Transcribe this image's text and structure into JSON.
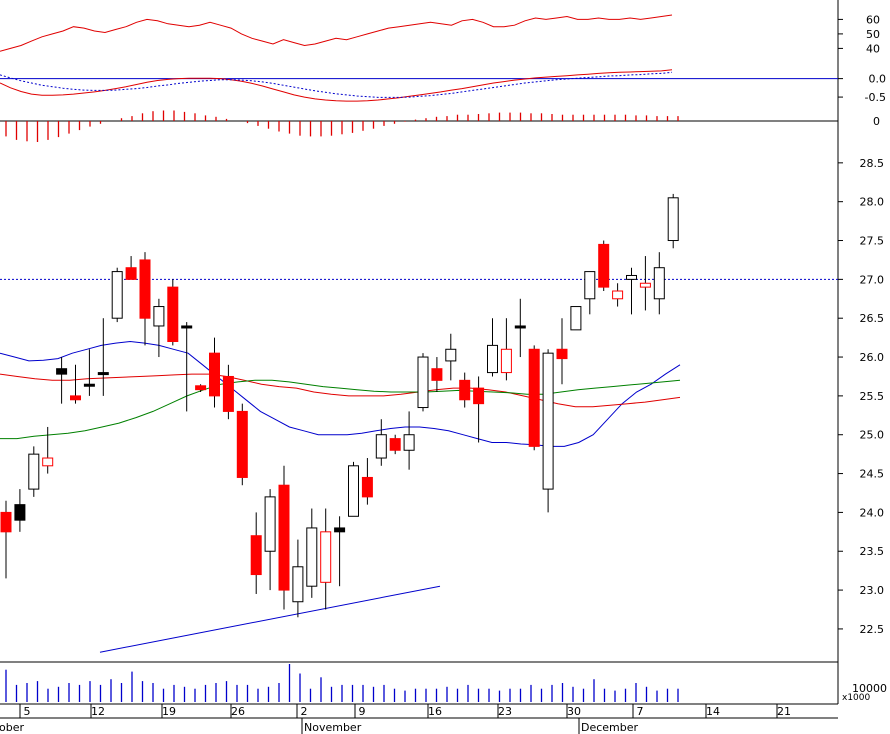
{
  "chart_data": [
    {
      "panel": "rsi",
      "type": "line",
      "ylim": [
        32,
        72
      ],
      "ticks": [
        "60",
        "50",
        "40"
      ],
      "tick_values": [
        60,
        50,
        40
      ],
      "series": [
        {
          "color": "#e00000",
          "values": [
            38,
            40,
            42,
            45,
            48,
            50,
            52,
            55,
            54,
            52,
            51,
            53,
            55,
            58,
            60,
            59,
            57,
            56,
            55,
            56,
            58,
            56,
            54,
            50,
            47,
            45,
            43,
            46,
            44,
            42,
            43,
            45,
            47,
            46,
            48,
            50,
            52,
            54,
            55,
            56,
            57,
            58,
            57,
            56,
            59,
            60,
            58,
            55,
            55,
            56,
            59,
            61,
            60,
            61,
            62,
            60,
            60,
            61,
            60,
            60,
            61,
            60,
            61,
            62,
            63
          ]
        }
      ]
    },
    {
      "panel": "macd",
      "type": "line",
      "ylim": [
        -0.85,
        0.45
      ],
      "ticks": [
        "0.0",
        "-0.5"
      ],
      "tick_values": [
        0.0,
        -0.5
      ],
      "series": [
        {
          "color": "#e00000",
          "values": [
            -0.12,
            -0.25,
            -0.35,
            -0.42,
            -0.45,
            -0.45,
            -0.44,
            -0.42,
            -0.39,
            -0.36,
            -0.32,
            -0.27,
            -0.22,
            -0.16,
            -0.1,
            -0.05,
            -0.02,
            0.0,
            0.01,
            0.01,
            0.01,
            0.0,
            -0.03,
            -0.07,
            -0.13,
            -0.2,
            -0.28,
            -0.36,
            -0.44,
            -0.5,
            -0.55,
            -0.58,
            -0.6,
            -0.61,
            -0.61,
            -0.6,
            -0.58,
            -0.55,
            -0.52,
            -0.48,
            -0.44,
            -0.4,
            -0.36,
            -0.31,
            -0.27,
            -0.22,
            -0.17,
            -0.12,
            -0.08,
            -0.04,
            -0.01,
            0.02,
            0.04,
            0.06,
            0.08,
            0.1,
            0.12,
            0.14,
            0.16,
            0.17,
            0.18,
            0.19,
            0.2,
            0.21,
            0.24
          ]
        },
        {
          "color": "#0000cc",
          "dashed": true,
          "values": [
            0.1,
            0.02,
            -0.06,
            -0.12,
            -0.18,
            -0.22,
            -0.26,
            -0.29,
            -0.31,
            -0.32,
            -0.32,
            -0.31,
            -0.29,
            -0.27,
            -0.24,
            -0.2,
            -0.17,
            -0.13,
            -0.1,
            -0.07,
            -0.05,
            -0.03,
            -0.03,
            -0.04,
            -0.06,
            -0.09,
            -0.13,
            -0.18,
            -0.23,
            -0.28,
            -0.33,
            -0.37,
            -0.41,
            -0.44,
            -0.47,
            -0.49,
            -0.51,
            -0.51,
            -0.51,
            -0.5,
            -0.48,
            -0.46,
            -0.43,
            -0.4,
            -0.36,
            -0.32,
            -0.28,
            -0.24,
            -0.2,
            -0.16,
            -0.12,
            -0.09,
            -0.06,
            -0.03,
            -0.01,
            0.01,
            0.03,
            0.05,
            0.07,
            0.08,
            0.1,
            0.11,
            0.13,
            0.14,
            0.17
          ]
        }
      ]
    },
    {
      "panel": "histogram",
      "type": "bar",
      "ylim": [
        -0.4,
        0.25
      ],
      "ticks": [
        "0"
      ],
      "tick_values": [
        0
      ],
      "values": [
        -0.22,
        -0.27,
        -0.29,
        -0.3,
        -0.27,
        -0.23,
        -0.18,
        -0.13,
        -0.08,
        -0.04,
        0.0,
        0.04,
        0.07,
        0.11,
        0.14,
        0.15,
        0.15,
        0.13,
        0.11,
        0.08,
        0.06,
        0.03,
        0.0,
        -0.03,
        -0.07,
        -0.11,
        -0.15,
        -0.18,
        -0.21,
        -0.22,
        -0.22,
        -0.21,
        -0.19,
        -0.17,
        -0.14,
        -0.11,
        -0.07,
        -0.04,
        -0.01,
        0.02,
        0.04,
        0.06,
        0.07,
        0.09,
        0.09,
        0.1,
        0.11,
        0.12,
        0.12,
        0.12,
        0.11,
        0.11,
        0.1,
        0.09,
        0.09,
        0.09,
        0.09,
        0.09,
        0.09,
        0.09,
        0.08,
        0.08,
        0.07,
        0.07,
        0.07
      ]
    },
    {
      "panel": "price",
      "type": "candlestick",
      "ylim": [
        22.1,
        29.0
      ],
      "ticks": [
        "28.5",
        "28.0",
        "27.5",
        "27.0",
        "26.5",
        "26.0",
        "25.5",
        "25.0",
        "24.5",
        "24.0",
        "23.5",
        "23.0",
        "22.5"
      ],
      "tick_values": [
        28.5,
        28.0,
        27.5,
        27.0,
        26.5,
        26.0,
        25.5,
        25.0,
        24.5,
        24.0,
        23.5,
        23.0,
        22.5
      ],
      "reference_line": 27.0,
      "candles": [
        {
          "o": 24.0,
          "h": 24.15,
          "l": 23.15,
          "c": 23.75,
          "color": "red"
        },
        {
          "o": 23.9,
          "h": 24.3,
          "l": 23.75,
          "c": 24.1,
          "color": "black"
        },
        {
          "o": 24.3,
          "h": 24.85,
          "l": 24.2,
          "c": 24.75,
          "color": "white"
        },
        {
          "o": 24.7,
          "h": 25.1,
          "l": 24.5,
          "c": 24.6,
          "color": "white-red"
        },
        {
          "o": 25.85,
          "h": 26.0,
          "l": 25.4,
          "c": 25.78,
          "color": "black"
        },
        {
          "o": 25.5,
          "h": 25.9,
          "l": 25.4,
          "c": 25.45,
          "color": "red"
        },
        {
          "o": 25.65,
          "h": 26.1,
          "l": 25.5,
          "c": 25.65,
          "color": "black"
        },
        {
          "o": 25.8,
          "h": 26.5,
          "l": 25.5,
          "c": 25.8,
          "color": "black"
        },
        {
          "o": 26.5,
          "h": 27.15,
          "l": 26.45,
          "c": 27.1,
          "color": "white"
        },
        {
          "o": 27.15,
          "h": 27.3,
          "l": 27.0,
          "c": 27.0,
          "color": "red"
        },
        {
          "o": 27.25,
          "h": 27.35,
          "l": 26.15,
          "c": 26.5,
          "color": "red"
        },
        {
          "o": 26.4,
          "h": 26.75,
          "l": 26.0,
          "c": 26.65,
          "color": "white"
        },
        {
          "o": 26.9,
          "h": 27.0,
          "l": 26.15,
          "c": 26.2,
          "color": "red"
        },
        {
          "o": 26.4,
          "h": 26.45,
          "l": 25.3,
          "c": 26.4,
          "color": "black"
        },
        {
          "o": 25.63,
          "h": 25.65,
          "l": 25.55,
          "c": 25.58,
          "color": "red"
        },
        {
          "o": 26.05,
          "h": 26.25,
          "l": 25.35,
          "c": 25.5,
          "color": "red"
        },
        {
          "o": 25.75,
          "h": 25.9,
          "l": 25.2,
          "c": 25.3,
          "color": "red"
        },
        {
          "o": 25.3,
          "h": 25.4,
          "l": 24.35,
          "c": 24.45,
          "color": "red"
        },
        {
          "o": 23.7,
          "h": 24.0,
          "l": 22.95,
          "c": 23.2,
          "color": "red"
        },
        {
          "o": 23.5,
          "h": 24.3,
          "l": 23.0,
          "c": 24.2,
          "color": "white"
        },
        {
          "o": 24.35,
          "h": 24.6,
          "l": 22.75,
          "c": 23.0,
          "color": "red"
        },
        {
          "o": 22.85,
          "h": 23.65,
          "l": 22.65,
          "c": 23.3,
          "color": "white"
        },
        {
          "o": 23.05,
          "h": 24.05,
          "l": 22.9,
          "c": 23.8,
          "color": "white"
        },
        {
          "o": 23.75,
          "h": 24.05,
          "l": 22.75,
          "c": 23.1,
          "color": "white-red"
        },
        {
          "o": 23.8,
          "h": 23.95,
          "l": 23.05,
          "c": 23.75,
          "color": "black"
        },
        {
          "o": 23.95,
          "h": 24.65,
          "l": 23.95,
          "c": 24.6,
          "color": "white"
        },
        {
          "o": 24.45,
          "h": 24.7,
          "l": 24.1,
          "c": 24.2,
          "color": "red"
        },
        {
          "o": 24.7,
          "h": 25.2,
          "l": 24.6,
          "c": 25.0,
          "color": "white"
        },
        {
          "o": 24.95,
          "h": 25.0,
          "l": 24.75,
          "c": 24.8,
          "color": "red"
        },
        {
          "o": 24.8,
          "h": 25.3,
          "l": 24.55,
          "c": 25.0,
          "color": "white"
        },
        {
          "o": 25.35,
          "h": 26.05,
          "l": 25.3,
          "c": 26.0,
          "color": "white"
        },
        {
          "o": 25.85,
          "h": 26.0,
          "l": 25.55,
          "c": 25.7,
          "color": "red"
        },
        {
          "o": 25.95,
          "h": 26.3,
          "l": 25.7,
          "c": 26.1,
          "color": "white"
        },
        {
          "o": 25.7,
          "h": 25.8,
          "l": 25.35,
          "c": 25.45,
          "color": "red"
        },
        {
          "o": 25.6,
          "h": 25.75,
          "l": 24.9,
          "c": 25.4,
          "color": "red"
        },
        {
          "o": 25.8,
          "h": 26.5,
          "l": 25.75,
          "c": 26.15,
          "color": "white"
        },
        {
          "o": 25.8,
          "h": 26.5,
          "l": 25.7,
          "c": 26.1,
          "color": "white-red"
        },
        {
          "o": 26.4,
          "h": 26.75,
          "l": 26.0,
          "c": 26.4,
          "color": "black"
        },
        {
          "o": 26.1,
          "h": 26.15,
          "l": 24.8,
          "c": 24.85,
          "color": "red"
        },
        {
          "o": 24.3,
          "h": 26.1,
          "l": 24.0,
          "c": 26.05,
          "color": "white"
        },
        {
          "o": 26.1,
          "h": 26.5,
          "l": 25.65,
          "c": 25.98,
          "color": "red"
        },
        {
          "o": 26.35,
          "h": 26.65,
          "l": 26.35,
          "c": 26.65,
          "color": "white"
        },
        {
          "o": 26.75,
          "h": 27.1,
          "l": 26.55,
          "c": 27.1,
          "color": "white"
        },
        {
          "o": 27.45,
          "h": 27.5,
          "l": 26.85,
          "c": 26.9,
          "color": "red"
        },
        {
          "o": 26.75,
          "h": 26.95,
          "l": 26.65,
          "c": 26.85,
          "color": "white-red"
        },
        {
          "o": 27.0,
          "h": 27.15,
          "l": 26.55,
          "c": 27.05,
          "color": "white"
        },
        {
          "o": 26.9,
          "h": 27.3,
          "l": 26.6,
          "c": 26.95,
          "color": "white-red"
        },
        {
          "o": 26.75,
          "h": 27.35,
          "l": 26.55,
          "c": 27.15,
          "color": "white"
        },
        {
          "o": 27.5,
          "h": 28.1,
          "l": 27.4,
          "c": 28.05,
          "color": "white"
        }
      ],
      "ma_series": [
        {
          "color": "#0000cc",
          "values": [
            26.05,
            26.0,
            25.95,
            25.96,
            25.98,
            26.05,
            26.1,
            26.15,
            26.18,
            26.2,
            26.18,
            26.15,
            26.1,
            26.05,
            25.9,
            25.75,
            25.6,
            25.45,
            25.3,
            25.2,
            25.1,
            25.05,
            25.0,
            25.0,
            25.0,
            25.02,
            25.05,
            25.08,
            25.1,
            25.1,
            25.08,
            25.05,
            25.0,
            24.95,
            24.9,
            24.9,
            24.88,
            24.87,
            24.85,
            24.85,
            24.9,
            25.0,
            25.2,
            25.4,
            25.55,
            25.65,
            25.78,
            25.9
          ]
        },
        {
          "color": "#e00000",
          "values": [
            25.78,
            25.75,
            25.72,
            25.7,
            25.7,
            25.72,
            25.73,
            25.74,
            25.75,
            25.76,
            25.77,
            25.78,
            25.78,
            25.75,
            25.7,
            25.65,
            25.62,
            25.6,
            25.55,
            25.52,
            25.5,
            25.5,
            25.5,
            25.52,
            25.55,
            25.58,
            25.6,
            25.6,
            25.58,
            25.55,
            25.5,
            25.45,
            25.4,
            25.36,
            25.36,
            25.38,
            25.4,
            25.42,
            25.45,
            25.48
          ]
        },
        {
          "color": "#008000",
          "values": [
            24.95,
            24.95,
            24.98,
            25.0,
            25.02,
            25.05,
            25.1,
            25.15,
            25.22,
            25.3,
            25.4,
            25.5,
            25.58,
            25.65,
            25.68,
            25.7,
            25.7,
            25.68,
            25.65,
            25.62,
            25.6,
            25.58,
            25.56,
            25.55,
            25.55,
            25.55,
            25.56,
            25.57,
            25.56,
            25.55,
            25.54,
            25.52,
            25.52,
            25.55,
            25.58,
            25.6,
            25.62,
            25.64,
            25.66,
            25.68,
            25.7
          ]
        }
      ],
      "trendline": {
        "from": [
          0,
          22.2
        ],
        "to": [
          40,
          23.05
        ]
      }
    },
    {
      "panel": "volume",
      "type": "bar",
      "unit_label": "x1000",
      "ticks": [
        "10000"
      ],
      "values": [
        0.85,
        0.45,
        0.5,
        0.55,
        0.35,
        0.4,
        0.5,
        0.45,
        0.55,
        0.45,
        0.6,
        0.5,
        0.8,
        0.55,
        0.5,
        0.35,
        0.45,
        0.4,
        0.35,
        0.45,
        0.5,
        0.55,
        0.45,
        0.45,
        0.35,
        0.4,
        0.5,
        1.0,
        0.75,
        0.35,
        0.65,
        0.4,
        0.45,
        0.45,
        0.45,
        0.4,
        0.45,
        0.35,
        0.3,
        0.35,
        0.35,
        0.35,
        0.4,
        0.35,
        0.45,
        0.35,
        0.35,
        0.3,
        0.35,
        0.35,
        0.45,
        0.35,
        0.45,
        0.5,
        0.4,
        0.35,
        0.6,
        0.35,
        0.3,
        0.35,
        0.5,
        0.4,
        0.3,
        0.35,
        0.35
      ]
    }
  ],
  "x_axis": {
    "day_labels": [
      "5",
      "12",
      "19",
      "26",
      "2",
      "9",
      "16",
      "23",
      "30",
      "7",
      "14",
      "21"
    ],
    "month_labels": [
      "October",
      "November",
      "December"
    ]
  }
}
